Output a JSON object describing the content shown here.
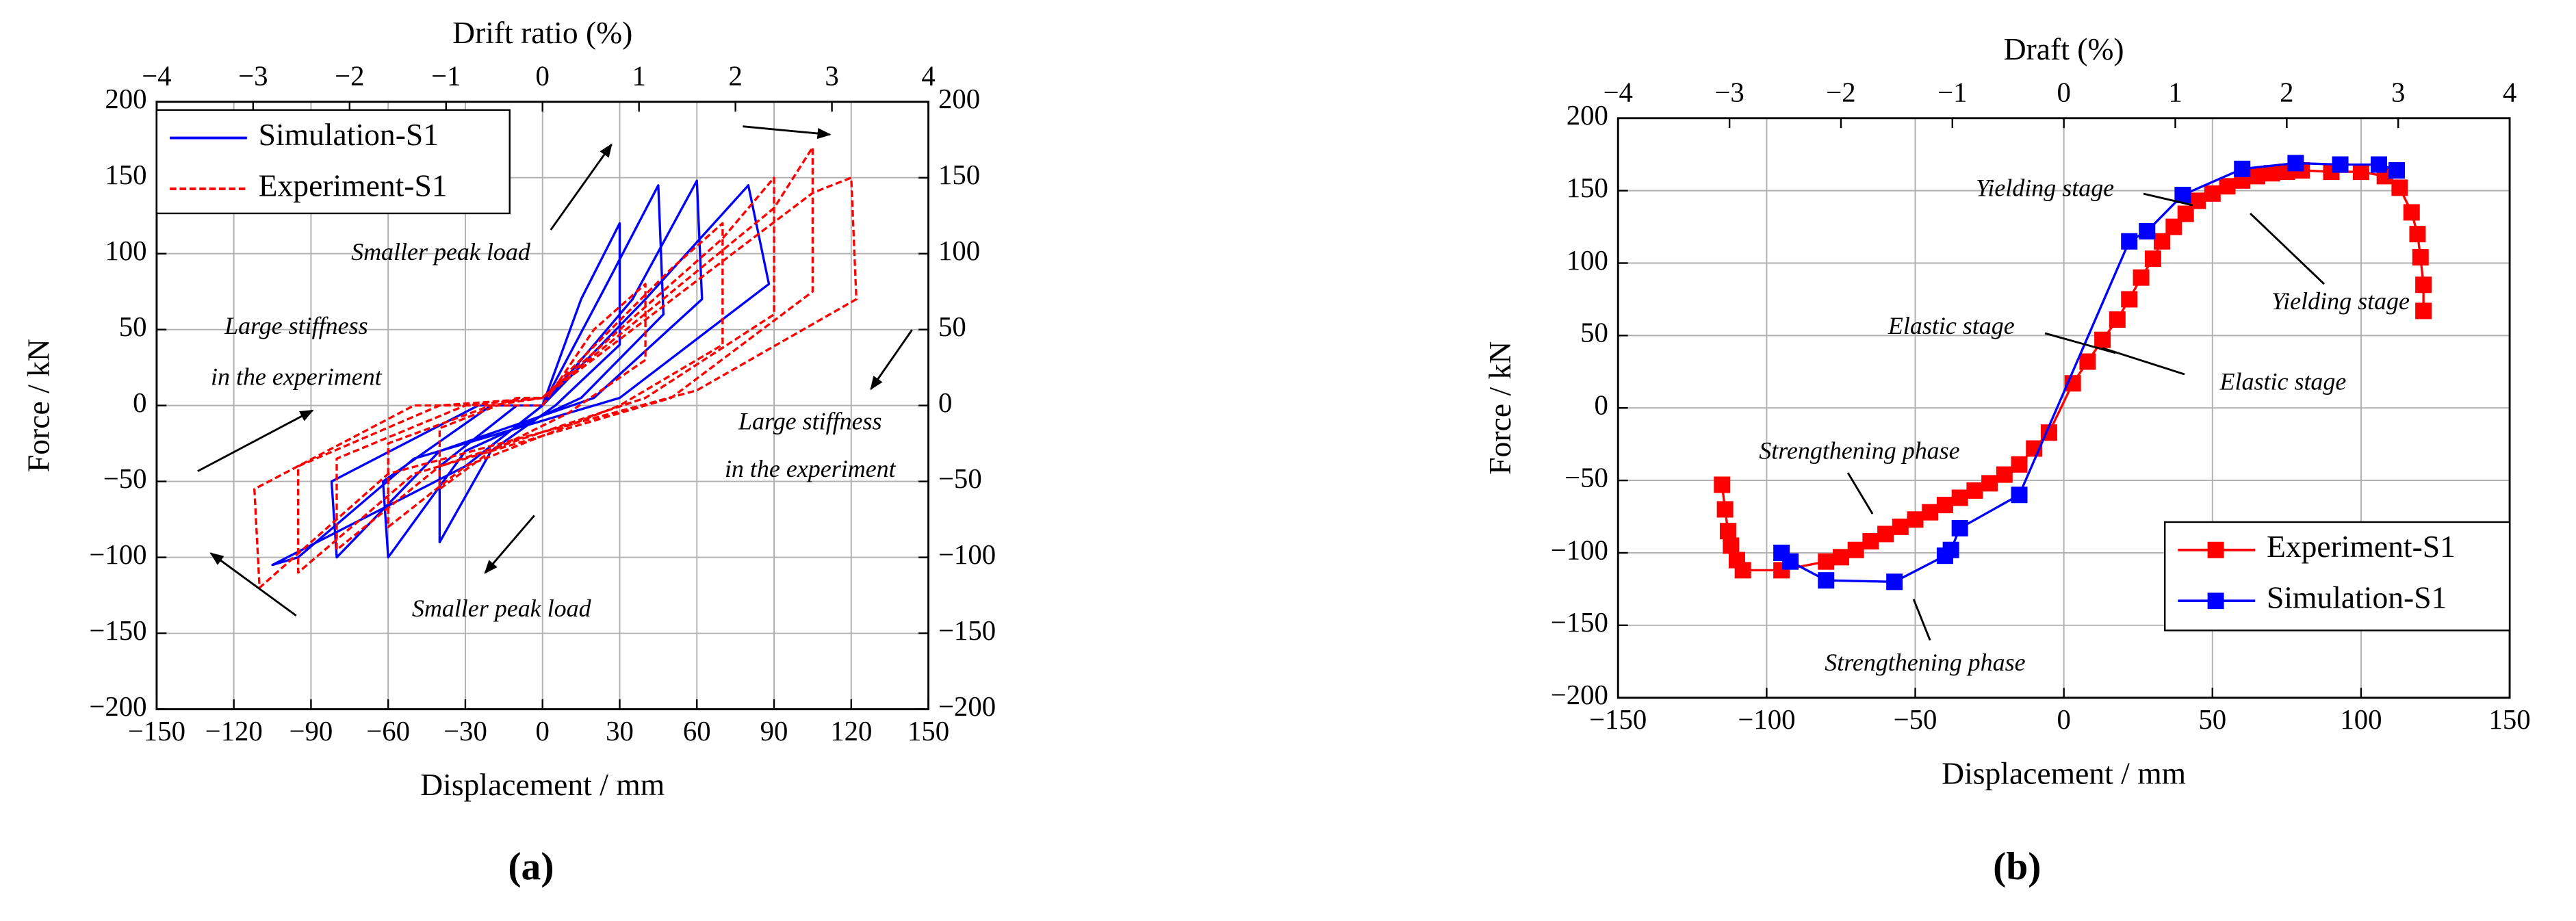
{
  "chart_data": [
    {
      "type": "line",
      "panel_label": "(a)",
      "x_label": "Displacement / mm",
      "y_label": "Force / kN",
      "x2_label": "Drift ratio (%)",
      "xlim": [
        -150,
        150
      ],
      "xticks": [
        {
          "value": -150,
          "label": "−150"
        },
        {
          "value": -120,
          "label": "−120"
        },
        {
          "value": -90,
          "label": "−90"
        },
        {
          "value": -60,
          "label": "−60"
        },
        {
          "value": -30,
          "label": "−30"
        },
        0,
        30,
        60,
        90,
        120,
        150
      ],
      "ylim": [
        -200,
        200
      ],
      "yticks": [
        {
          "value": -200,
          "label": "−200"
        },
        {
          "value": -150,
          "label": "−150"
        },
        {
          "value": -100,
          "label": "−100"
        },
        {
          "value": -50,
          "label": "−50"
        },
        0,
        50,
        100,
        150,
        200
      ],
      "y2lim": [
        -200,
        200
      ],
      "y2ticks": [
        {
          "value": -200,
          "label": "−200"
        },
        {
          "value": -150,
          "label": "−150"
        },
        {
          "value": -100,
          "label": "−100"
        },
        {
          "value": -50,
          "label": "−50"
        },
        0,
        50,
        100,
        150,
        200
      ],
      "x2lim": [
        -4,
        4
      ],
      "x2ticks": [
        {
          "value": -4,
          "label": "−4"
        },
        {
          "value": -3,
          "label": "−3"
        },
        {
          "value": -2,
          "label": "−2"
        },
        {
          "value": -1,
          "label": "−1"
        },
        0,
        1,
        2,
        3,
        4
      ],
      "grid": true,
      "legend": "upper left",
      "series": [
        {
          "name": "Simulation-S1",
          "color": "#0000ff",
          "dashed": false,
          "x": [
            0,
            15,
            30,
            30,
            5,
            -20,
            -40,
            -40,
            -10,
            0,
            25,
            45,
            47,
            15,
            -30,
            -60,
            -62,
            -20,
            0,
            35,
            60,
            62,
            20,
            -40,
            -80,
            -82,
            -25,
            0,
            40,
            80,
            88,
            30,
            -50,
            -95,
            -105,
            -30,
            0
          ],
          "y": [
            0,
            70,
            120,
            40,
            0,
            -30,
            -90,
            -40,
            0,
            0,
            80,
            145,
            60,
            5,
            -30,
            -100,
            -50,
            0,
            0,
            70,
            148,
            70,
            5,
            -30,
            -100,
            -50,
            0,
            0,
            70,
            145,
            80,
            5,
            -35,
            -100,
            -105,
            -40,
            0
          ]
        },
        {
          "name": "Experiment-S1",
          "color": "#ff0000",
          "dashed": true,
          "x": [
            0,
            20,
            40,
            40,
            10,
            -20,
            -40,
            -40,
            -10,
            0,
            50,
            70,
            70,
            30,
            -30,
            -60,
            -60,
            -20,
            0,
            70,
            90,
            90,
            40,
            -40,
            -80,
            -80,
            -30,
            0,
            90,
            105,
            105,
            50,
            -50,
            -95,
            -95,
            -40,
            0,
            105,
            120,
            122,
            60,
            -60,
            -110,
            -112,
            -50,
            0
          ],
          "y": [
            0,
            50,
            80,
            30,
            -5,
            -30,
            -55,
            -15,
            5,
            5,
            90,
            120,
            40,
            0,
            -40,
            -80,
            -25,
            0,
            5,
            110,
            150,
            60,
            5,
            -40,
            -95,
            -35,
            0,
            5,
            130,
            170,
            75,
            5,
            -45,
            -110,
            -40,
            0,
            5,
            140,
            150,
            70,
            10,
            -45,
            -120,
            -55,
            0,
            0
          ]
        }
      ],
      "annotations": [
        "Smaller peak load",
        "Large stiffness",
        "in the experiment",
        "Large stiffness",
        "in the experiment",
        "Smaller peak load"
      ]
    },
    {
      "type": "line",
      "panel_label": "(b)",
      "x_label": "Displacement / mm",
      "y_label": "Force / kN",
      "x2_label": "Draft (%)",
      "xlim": [
        -150,
        150
      ],
      "xticks": [
        {
          "value": -150,
          "label": "−150"
        },
        {
          "value": -100,
          "label": "−100"
        },
        {
          "value": -50,
          "label": "−50"
        },
        0,
        50,
        100,
        150
      ],
      "ylim": [
        -200,
        200
      ],
      "yticks": [
        {
          "value": -200,
          "label": "−200"
        },
        {
          "value": -150,
          "label": "−150"
        },
        {
          "value": -100,
          "label": "−100"
        },
        {
          "value": -50,
          "label": "−50"
        },
        0,
        50,
        100,
        150,
        200
      ],
      "x2lim": [
        -4,
        4
      ],
      "x2ticks": [
        {
          "value": -4,
          "label": "−4"
        },
        {
          "value": -3,
          "label": "−3"
        },
        {
          "value": -2,
          "label": "−2"
        },
        {
          "value": -1,
          "label": "−1"
        },
        0,
        1,
        2,
        3,
        4
      ],
      "grid": true,
      "legend": "lower right",
      "markers": true,
      "series": [
        {
          "name": "Experiment-S1",
          "color": "#ff0000",
          "dashed": false,
          "x": [
            -115,
            -114,
            -113,
            -112,
            -110,
            -108,
            -95,
            -80,
            -75,
            -70,
            -65,
            -60,
            -55,
            -50,
            -45,
            -40,
            -35,
            -30,
            -25,
            -20,
            -15,
            -10,
            -5,
            3,
            8,
            13,
            18,
            22,
            26,
            30,
            33,
            37,
            41,
            45,
            50,
            55,
            60,
            65,
            70,
            75,
            80,
            90,
            100,
            108,
            113,
            117,
            119,
            120,
            121,
            121
          ],
          "y": [
            -53,
            -70,
            -85,
            -95,
            -105,
            -112,
            -112,
            -106,
            -103,
            -98,
            -92,
            -87,
            -82,
            -77,
            -72,
            -67,
            -62,
            -57,
            -52,
            -46,
            -39,
            -28,
            -17,
            17,
            32,
            47,
            61,
            75,
            90,
            103,
            115,
            125,
            134,
            143,
            148,
            153,
            157,
            160,
            162,
            163,
            164,
            163,
            163,
            160,
            152,
            135,
            120,
            104,
            85,
            67
          ]
        },
        {
          "name": "Simulation-S1",
          "color": "#0000ff",
          "dashed": false,
          "x": [
            -95,
            -92,
            -80,
            -57,
            -40,
            -38,
            -35,
            -15,
            22,
            28,
            40,
            60,
            78,
            93,
            106,
            112
          ],
          "y": [
            -100,
            -106,
            -119,
            -120,
            -102,
            -98,
            -83,
            -60,
            115,
            122,
            147,
            165,
            169,
            168,
            168,
            164
          ]
        }
      ],
      "annotations": [
        "Yielding stage",
        "Yielding stage",
        "Elastic stage",
        "Elastic stage",
        "Strengthening phase",
        "Strengthening phase"
      ]
    }
  ]
}
